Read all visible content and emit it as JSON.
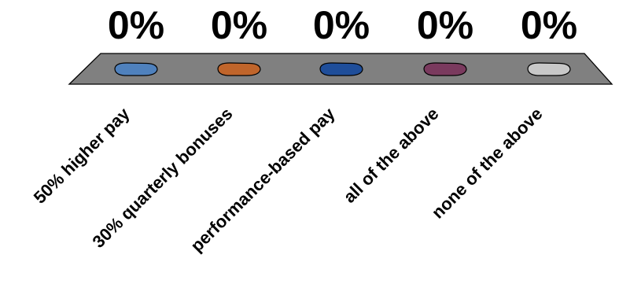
{
  "chart_data": {
    "type": "bar",
    "categories": [
      "50% higher pay",
      "30% quarterly bonuses",
      "performance-based pay",
      "all of the above",
      "none of the above"
    ],
    "values": [
      0,
      0,
      0,
      0,
      0
    ],
    "value_labels": [
      "0%",
      "0%",
      "0%",
      "0%",
      "0%"
    ],
    "series_colors": [
      "#4f81bd",
      "#c0652b",
      "#1f4e9a",
      "#7a3a5e",
      "#c8c8c8"
    ],
    "floor_color": "#808080",
    "ylim": [
      0,
      100
    ],
    "three_d": true,
    "grid": false,
    "legend": "none"
  }
}
